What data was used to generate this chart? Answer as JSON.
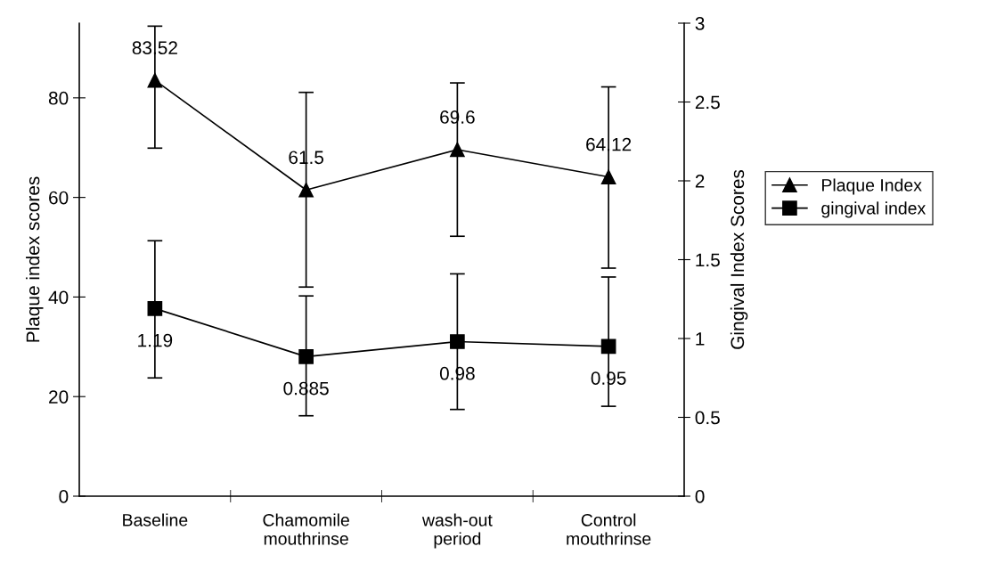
{
  "chart_data": {
    "type": "line",
    "categories": [
      "Baseline",
      "Chamomile\nmouthrinse",
      "wash-out\nperiod",
      "Control\nmouthrinse"
    ],
    "ylabel": "Plaque index scores",
    "y2label": "Gingival Index Scores",
    "ylim": [
      0,
      95
    ],
    "yticks": [
      0,
      20,
      40,
      60,
      80
    ],
    "y2lim": [
      0,
      3
    ],
    "y2ticks": [
      0,
      0.5,
      1,
      1.5,
      2,
      2.5,
      3
    ],
    "series": [
      {
        "name": "Plaque Index",
        "color": "#000000",
        "marker": "triangle",
        "values": [
          83.52,
          61.5,
          69.6,
          64.12
        ],
        "errors": [
          [
            69.9,
            94.4
          ],
          [
            42.0,
            81.1
          ],
          [
            52.2,
            83.0
          ],
          [
            45.8,
            82.2
          ]
        ]
      },
      {
        "name": "gingival index",
        "color": "#000000",
        "marker": "square",
        "axis": "y2",
        "values": [
          1.19,
          0.885,
          0.98,
          0.95
        ],
        "errors": [
          [
            0.75,
            1.62
          ],
          [
            0.51,
            1.27
          ],
          [
            0.55,
            1.41
          ],
          [
            0.57,
            1.39
          ]
        ]
      }
    ],
    "data_labels": true,
    "legend": "right",
    "grid": false,
    "line_style": "solid"
  }
}
